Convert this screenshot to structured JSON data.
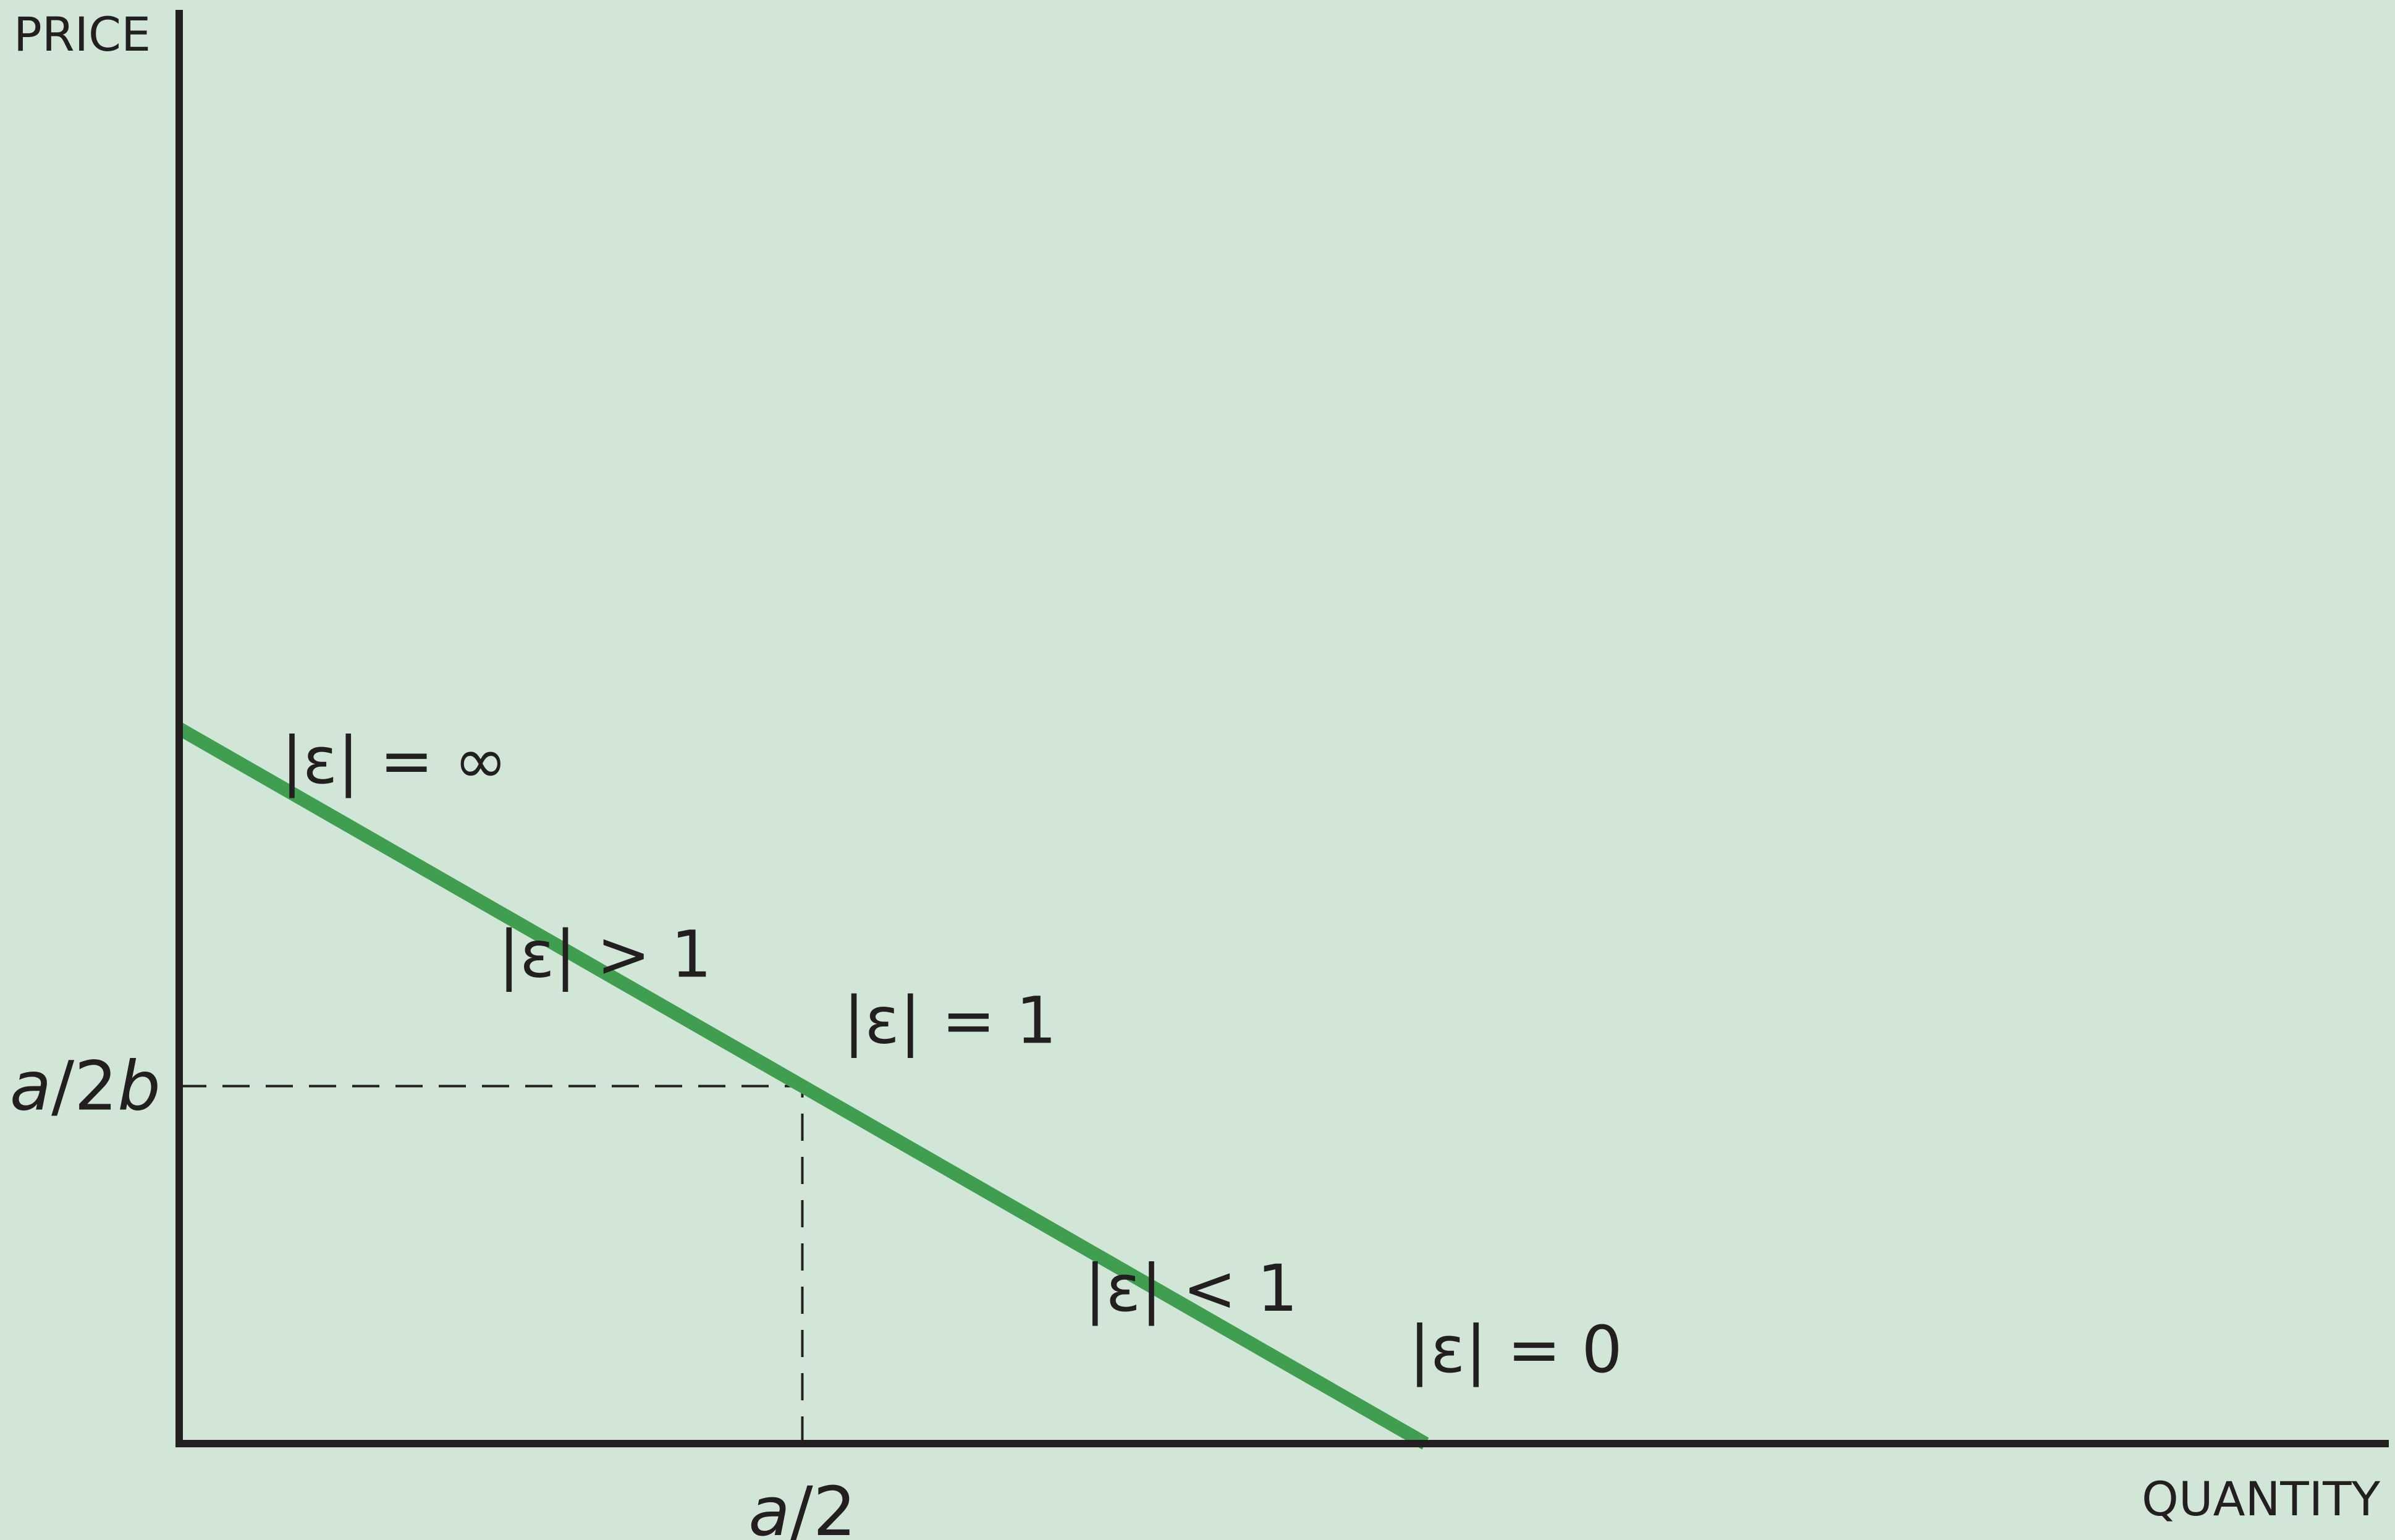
{
  "chart_data": {
    "type": "line",
    "title": "",
    "xlabel": "QUANTITY",
    "ylabel": "PRICE",
    "background_color": "#d1e6d7",
    "line_color": "#3f9e4f",
    "axis_color": "#231f20",
    "xlim": [
      0,
      1.77
    ],
    "ylim": [
      0,
      1.0
    ],
    "series": [
      {
        "points": [
          {
            "x": 0,
            "y": 0.5
          },
          {
            "x": 0.5,
            "y": 0.25
          },
          {
            "x": 1.0,
            "y": 0
          }
        ]
      }
    ],
    "ticks": {
      "x": [
        {
          "value": 0.5,
          "label_italic": "a",
          "label_rest": "/2"
        }
      ],
      "y": [
        {
          "value": 0.25,
          "label_italic_1": "a",
          "label_mid": "/2",
          "label_italic_2": "b"
        }
      ]
    },
    "reference_lines": [
      {
        "style": "dashed",
        "from": {
          "x": 0,
          "y": 0.25
        },
        "to": {
          "x": 0.5,
          "y": 0.25
        }
      },
      {
        "style": "dashed",
        "from": {
          "x": 0.5,
          "y": 0
        },
        "to": {
          "x": 0.5,
          "y": 0.25
        }
      }
    ],
    "annotations": [
      {
        "name": "elasticity-infinite-label",
        "text": "|ε| = ∞",
        "x": 0.0,
        "y": 0.5
      },
      {
        "name": "elasticity-elastic-label",
        "text": "|ε| > 1",
        "x": 0.25,
        "y": 0.375
      },
      {
        "name": "elasticity-unit-label",
        "text": "|ε| = 1",
        "x": 0.5,
        "y": 0.25
      },
      {
        "name": "elasticity-inelastic-label",
        "text": "|ε| < 1",
        "x": 0.75,
        "y": 0.125
      },
      {
        "name": "elasticity-zero-label",
        "text": "|ε| = 0",
        "x": 1.0,
        "y": 0.0
      }
    ]
  }
}
